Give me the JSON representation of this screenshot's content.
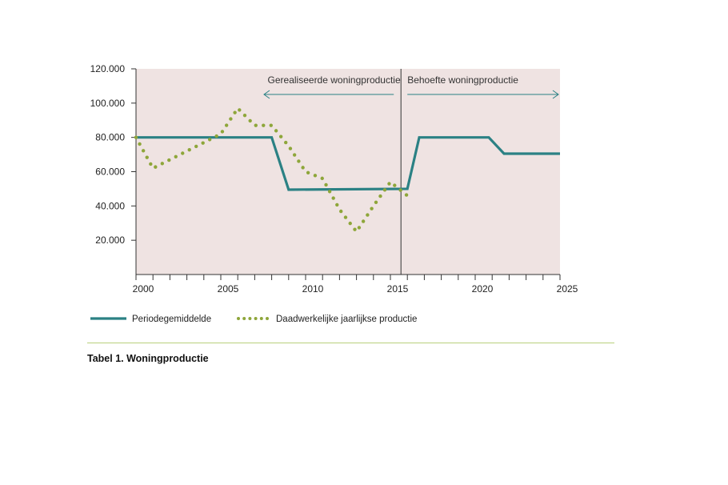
{
  "chart_data": {
    "type": "line",
    "xlim": [
      2000,
      2025
    ],
    "ylim": [
      0,
      120000
    ],
    "x_ticks": [
      2000,
      2005,
      2010,
      2015,
      2020,
      2025
    ],
    "y_ticks": [
      20000,
      40000,
      60000,
      80000,
      100000,
      120000
    ],
    "x_tick_labels": [
      "2000",
      "2005",
      "2010",
      "2015",
      "2020",
      "2025"
    ],
    "y_tick_labels": [
      "20.000",
      "40.000",
      "60.000",
      "80.000",
      "100.000",
      "120.000"
    ],
    "divider_x": 2016,
    "annotations": {
      "left": "Gerealiseerde woningproductie",
      "right": "Behoefte woningproductie"
    },
    "series": [
      {
        "name": "Periodegemiddelde",
        "style": "solid",
        "color": "#2b8184",
        "x": [
          2000,
          2008,
          2009,
          2016,
          2016.7,
          2020.8,
          2021.7,
          2025
        ],
        "y": [
          80000,
          80000,
          49500,
          50000,
          80000,
          80000,
          70500,
          70500
        ]
      },
      {
        "name": "Daadwerkelijke jaarlijkse productie",
        "style": "dotted",
        "color": "#8ea63a",
        "x": [
          2000,
          2001,
          2002,
          2003,
          2004,
          2005,
          2006,
          2007,
          2008,
          2009,
          2010,
          2011,
          2012,
          2013,
          2014,
          2015,
          2016
        ],
        "y": [
          80000,
          62000,
          67000,
          72000,
          77000,
          82000,
          97000,
          87000,
          87000,
          75000,
          60000,
          56000,
          38000,
          25000,
          40000,
          54000,
          46000
        ]
      }
    ]
  },
  "caption": "Tabel 1. Woningproductie"
}
